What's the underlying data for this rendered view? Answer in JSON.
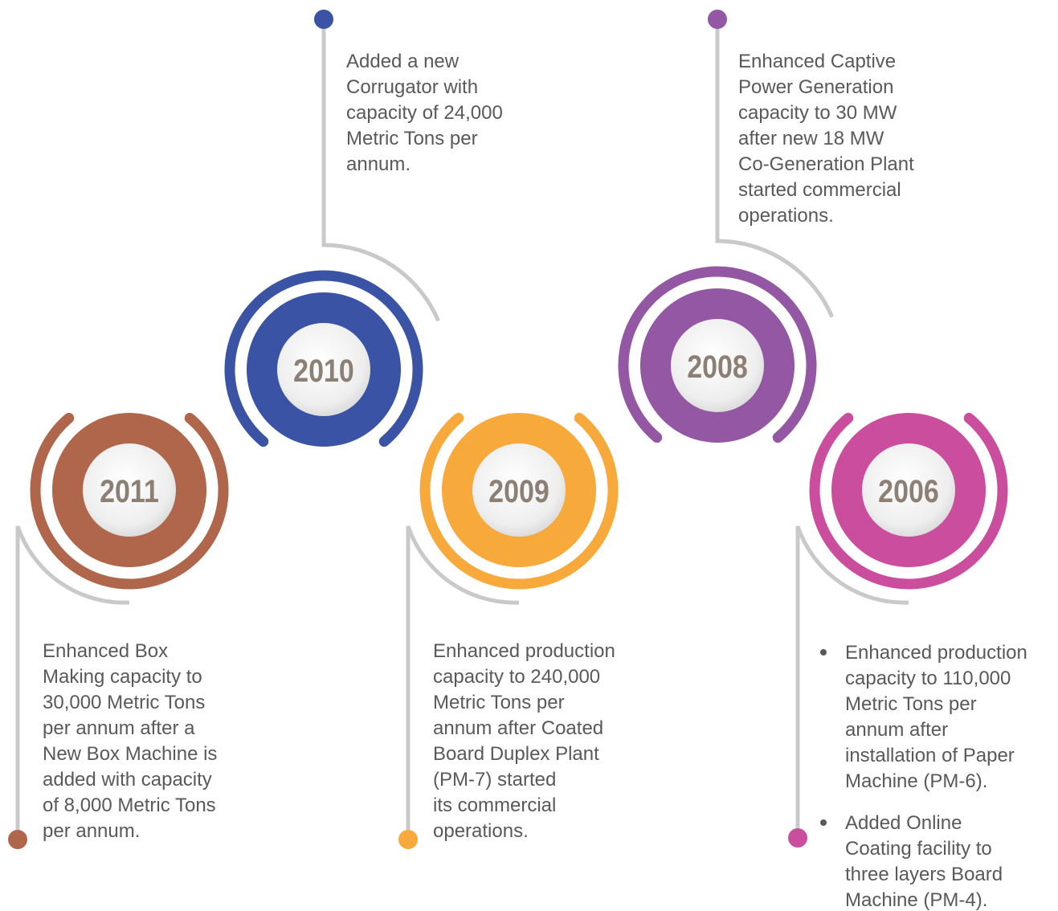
{
  "milestones": [
    {
      "year": "2011",
      "lines": [
        "Enhanced Box",
        "Making capacity to",
        "30,000 Metric Tons",
        "per annum after a",
        "New Box Machine is",
        "added with capacity",
        "of 8,000 Metric Tons",
        "per annum."
      ]
    },
    {
      "year": "2010",
      "lines": [
        "Added a new",
        "Corrugator with",
        "capacity of 24,000",
        "Metric Tons per",
        "annum."
      ]
    },
    {
      "year": "2009",
      "lines": [
        "Enhanced production",
        "capacity to 240,000",
        "Metric Tons per",
        "annum after Coated",
        "Board Duplex Plant",
        "(PM-7) started",
        "its commercial",
        "operations."
      ]
    },
    {
      "year": "2008",
      "lines": [
        "Enhanced Captive",
        "Power Generation",
        "capacity to 30 MW",
        "after new 18 MW",
        "Co-Generation Plant",
        "started commercial",
        "operations."
      ]
    },
    {
      "year": "2006",
      "bullets": [
        [
          "Enhanced production",
          "capacity to 110,000",
          "Metric Tons per",
          "annum after",
          "installation of Paper",
          "Machine (PM-6)."
        ],
        [
          "Added Online",
          "Coating facility to",
          "three layers Board",
          "Machine (PM-4)."
        ]
      ]
    }
  ]
}
